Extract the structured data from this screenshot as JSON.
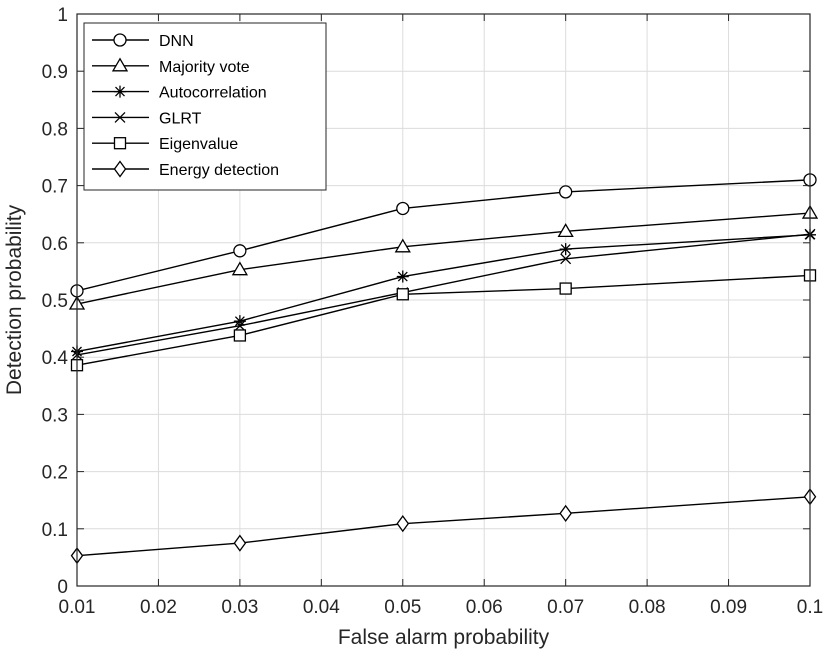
{
  "chart_data": {
    "type": "line",
    "xlabel": "False alarm probability",
    "ylabel": "Detection probability",
    "xlim": [
      0.01,
      0.1
    ],
    "ylim": [
      0,
      1
    ],
    "x": [
      0.01,
      0.03,
      0.05,
      0.07,
      0.1
    ],
    "x_ticks": [
      "0.01",
      "0.02",
      "0.03",
      "0.04",
      "0.05",
      "0.06",
      "0.07",
      "0.08",
      "0.09",
      "0.1"
    ],
    "y_ticks": [
      "0",
      "0.1",
      "0.2",
      "0.3",
      "0.4",
      "0.5",
      "0.6",
      "0.7",
      "0.8",
      "0.9",
      "1"
    ],
    "grid": true,
    "legend_position": "top-left",
    "series": [
      {
        "name": "DNN",
        "marker": "circle",
        "values": [
          0.516,
          0.586,
          0.66,
          0.689,
          0.71
        ]
      },
      {
        "name": "Majority vote",
        "marker": "triangle",
        "values": [
          0.493,
          0.553,
          0.593,
          0.62,
          0.652
        ]
      },
      {
        "name": "Autocorrelation",
        "marker": "asterisk",
        "values": [
          0.41,
          0.463,
          0.541,
          0.589,
          0.614
        ]
      },
      {
        "name": "GLRT",
        "marker": "x",
        "values": [
          0.404,
          0.455,
          0.513,
          0.572,
          0.615
        ]
      },
      {
        "name": "Eigenvalue",
        "marker": "square",
        "values": [
          0.386,
          0.438,
          0.51,
          0.52,
          0.543
        ]
      },
      {
        "name": "Energy detection",
        "marker": "diamond",
        "values": [
          0.053,
          0.075,
          0.109,
          0.127,
          0.156
        ]
      }
    ]
  }
}
